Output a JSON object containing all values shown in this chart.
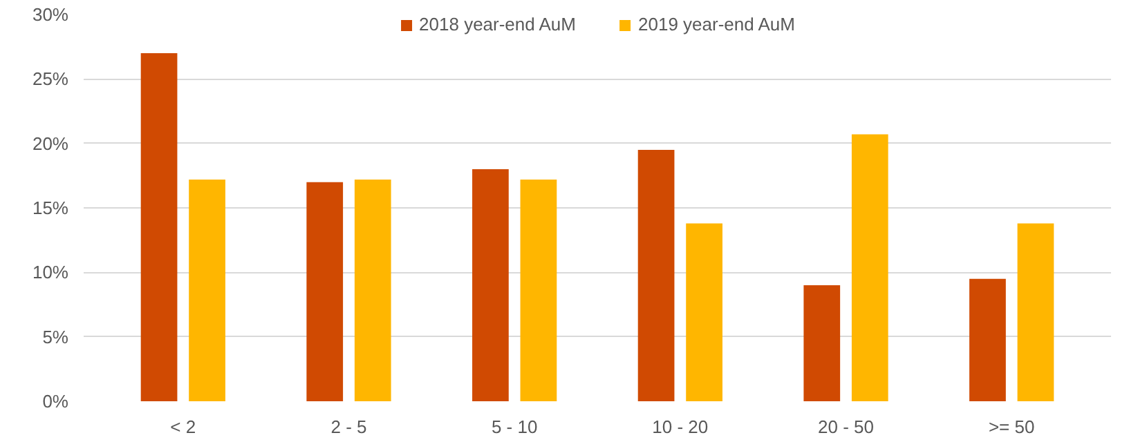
{
  "chart_data": {
    "type": "bar",
    "categories": [
      "< 2",
      "2 - 5",
      "5 - 10",
      "10 - 20",
      "20 - 50",
      ">= 50"
    ],
    "series": [
      {
        "name": "2018 year-end AuM",
        "color": "#d04a02",
        "values": [
          27,
          17,
          18,
          19.5,
          9,
          9.5
        ]
      },
      {
        "name": "2019 year-end AuM",
        "color": "#ffb600",
        "values": [
          17.2,
          17.2,
          17.2,
          13.8,
          20.7,
          13.8
        ]
      }
    ],
    "ylim": [
      0,
      30
    ],
    "yticks": [
      {
        "value": 0,
        "label": "0%"
      },
      {
        "value": 5,
        "label": "5%"
      },
      {
        "value": 10,
        "label": "10%"
      },
      {
        "value": 15,
        "label": "15%"
      },
      {
        "value": 20,
        "label": "20%"
      },
      {
        "value": 25,
        "label": "25%"
      },
      {
        "value": 30,
        "label": "30%"
      }
    ],
    "grid": "y",
    "legend": "top"
  }
}
